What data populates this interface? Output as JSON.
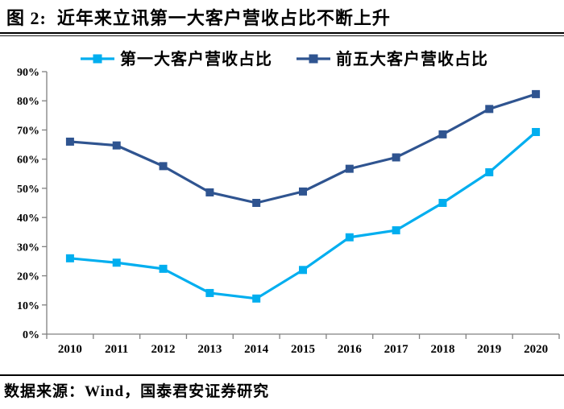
{
  "header": {
    "title": "图 2:  近年来立讯第一大客户营收占比不断上升"
  },
  "footer": {
    "source": "数据来源：Wind，国泰君安证券研究"
  },
  "chart_data": {
    "type": "line",
    "categories": [
      "2010",
      "2011",
      "2012",
      "2013",
      "2014",
      "2015",
      "2016",
      "2017",
      "2018",
      "2019",
      "2020"
    ],
    "series": [
      {
        "name": "第一大客户营收占比",
        "color": "#00AEEF",
        "values": [
          26.0,
          24.5,
          22.4,
          14.1,
          12.2,
          22.0,
          33.2,
          35.6,
          45.0,
          55.5,
          69.3
        ]
      },
      {
        "name": "前五大客户营收占比",
        "color": "#2F5490",
        "values": [
          66.0,
          64.7,
          57.6,
          48.6,
          45.0,
          48.9,
          56.7,
          60.6,
          68.5,
          77.2,
          82.3
        ]
      }
    ],
    "ylim": [
      0,
      90
    ],
    "y_tick_values": [
      0,
      10,
      20,
      30,
      40,
      50,
      60,
      70,
      80,
      90
    ],
    "y_tick_labels": [
      "0%",
      "10%",
      "20%",
      "30%",
      "40%",
      "50%",
      "60%",
      "70%",
      "80%",
      "90%"
    ],
    "xlabel": "",
    "ylabel": "",
    "grid": false,
    "legend_position": "top",
    "marker": "square",
    "axis_color": "#808080",
    "tick_label_color": "#000000"
  }
}
